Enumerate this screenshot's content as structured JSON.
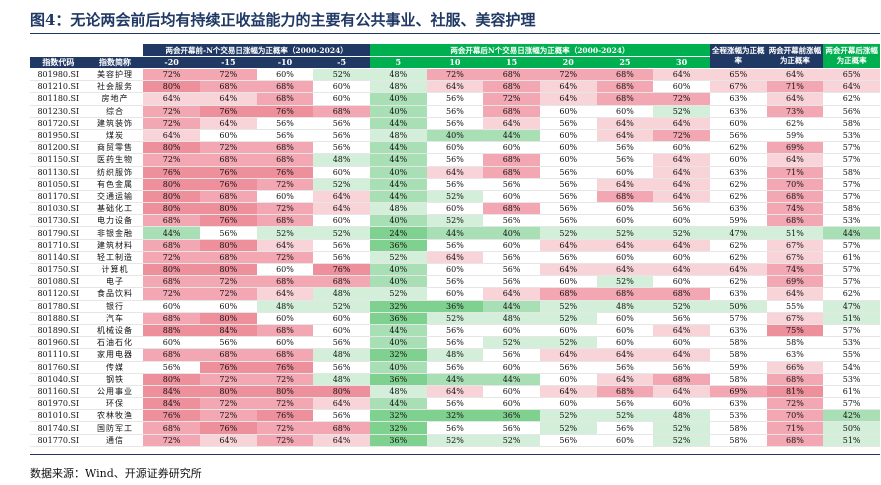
{
  "title": "图4：无论两会前后均有持续正收益能力的主要有公共事业、社服、美容护理",
  "headers": {
    "pre_group": "两会开幕前-N个交易日涨幅为正概率（2000-2024）",
    "post_group": "两会开幕后N个交易日涨幅为正概率（2000-2024）",
    "full": "全程涨幅为正概率",
    "pre_after": "两会开幕前涨幅为正概率",
    "post_after": "两会开幕后涨幅为正概率",
    "code": "指数代码",
    "name": "指数简称",
    "n_pre": [
      "-20",
      "-15",
      "-10",
      "-5"
    ],
    "n_post": [
      "5",
      "10",
      "15",
      "20",
      "25",
      "30"
    ]
  },
  "rows": [
    {
      "code": "801980.SI",
      "name": "美容护理",
      "v": [
        "72%",
        "72%",
        "60%",
        "52%",
        "48%",
        "72%",
        "68%",
        "72%",
        "68%",
        "64%",
        "65%",
        "64%",
        "65%"
      ]
    },
    {
      "code": "801210.SI",
      "name": "社会服务",
      "v": [
        "80%",
        "68%",
        "68%",
        "60%",
        "48%",
        "64%",
        "68%",
        "64%",
        "68%",
        "60%",
        "67%",
        "71%",
        "64%"
      ]
    },
    {
      "code": "801180.SI",
      "name": "房地产",
      "v": [
        "64%",
        "64%",
        "68%",
        "60%",
        "40%",
        "56%",
        "72%",
        "64%",
        "68%",
        "72%",
        "63%",
        "64%",
        "62%"
      ]
    },
    {
      "code": "801230.SI",
      "name": "综合",
      "v": [
        "72%",
        "76%",
        "76%",
        "68%",
        "40%",
        "56%",
        "68%",
        "60%",
        "60%",
        "52%",
        "63%",
        "73%",
        "56%"
      ]
    },
    {
      "code": "801720.SI",
      "name": "建筑装饰",
      "v": [
        "72%",
        "64%",
        "56%",
        "56%",
        "44%",
        "56%",
        "64%",
        "56%",
        "64%",
        "64%",
        "60%",
        "62%",
        "58%"
      ]
    },
    {
      "code": "801950.SI",
      "name": "煤炭",
      "v": [
        "64%",
        "60%",
        "56%",
        "56%",
        "48%",
        "40%",
        "44%",
        "60%",
        "64%",
        "72%",
        "56%",
        "59%",
        "53%"
      ]
    },
    {
      "code": "801200.SI",
      "name": "商贸零售",
      "v": [
        "80%",
        "72%",
        "68%",
        "56%",
        "44%",
        "60%",
        "60%",
        "60%",
        "56%",
        "60%",
        "62%",
        "69%",
        "57%"
      ]
    },
    {
      "code": "801150.SI",
      "name": "医药生物",
      "v": [
        "72%",
        "68%",
        "68%",
        "48%",
        "44%",
        "56%",
        "68%",
        "60%",
        "56%",
        "64%",
        "60%",
        "64%",
        "57%"
      ]
    },
    {
      "code": "801130.SI",
      "name": "纺织服饰",
      "v": [
        "76%",
        "76%",
        "76%",
        "60%",
        "40%",
        "64%",
        "68%",
        "56%",
        "60%",
        "64%",
        "63%",
        "71%",
        "58%"
      ]
    },
    {
      "code": "801050.SI",
      "name": "有色金属",
      "v": [
        "80%",
        "76%",
        "72%",
        "52%",
        "44%",
        "56%",
        "56%",
        "56%",
        "64%",
        "64%",
        "62%",
        "70%",
        "57%"
      ]
    },
    {
      "code": "801170.SI",
      "name": "交通运输",
      "v": [
        "80%",
        "68%",
        "60%",
        "64%",
        "44%",
        "52%",
        "60%",
        "56%",
        "68%",
        "64%",
        "62%",
        "68%",
        "57%"
      ]
    },
    {
      "code": "801030.SI",
      "name": "基础化工",
      "v": [
        "80%",
        "80%",
        "72%",
        "64%",
        "48%",
        "60%",
        "68%",
        "56%",
        "60%",
        "56%",
        "63%",
        "74%",
        "58%"
      ]
    },
    {
      "code": "801730.SI",
      "name": "电力设备",
      "v": [
        "68%",
        "76%",
        "68%",
        "60%",
        "40%",
        "52%",
        "56%",
        "56%",
        "60%",
        "60%",
        "59%",
        "68%",
        "53%"
      ]
    },
    {
      "code": "801790.SI",
      "name": "非银金融",
      "v": [
        "44%",
        "56%",
        "52%",
        "52%",
        "24%",
        "44%",
        "40%",
        "52%",
        "52%",
        "52%",
        "47%",
        "51%",
        "44%"
      ]
    },
    {
      "code": "801710.SI",
      "name": "建筑材料",
      "v": [
        "68%",
        "80%",
        "64%",
        "56%",
        "36%",
        "56%",
        "60%",
        "64%",
        "64%",
        "64%",
        "62%",
        "67%",
        "57%"
      ]
    },
    {
      "code": "801140.SI",
      "name": "轻工制造",
      "v": [
        "72%",
        "68%",
        "72%",
        "56%",
        "52%",
        "64%",
        "56%",
        "56%",
        "60%",
        "60%",
        "62%",
        "67%",
        "61%"
      ]
    },
    {
      "code": "801750.SI",
      "name": "计算机",
      "v": [
        "80%",
        "80%",
        "60%",
        "76%",
        "40%",
        "60%",
        "56%",
        "64%",
        "64%",
        "64%",
        "64%",
        "74%",
        "57%"
      ]
    },
    {
      "code": "801080.SI",
      "name": "电子",
      "v": [
        "68%",
        "72%",
        "68%",
        "68%",
        "40%",
        "56%",
        "56%",
        "60%",
        "52%",
        "60%",
        "62%",
        "69%",
        "57%"
      ]
    },
    {
      "code": "801120.SI",
      "name": "食品饮料",
      "v": [
        "72%",
        "72%",
        "64%",
        "48%",
        "52%",
        "60%",
        "64%",
        "68%",
        "68%",
        "68%",
        "63%",
        "64%",
        "62%"
      ]
    },
    {
      "code": "801780.SI",
      "name": "银行",
      "v": [
        "60%",
        "60%",
        "48%",
        "52%",
        "32%",
        "36%",
        "44%",
        "52%",
        "48%",
        "52%",
        "50%",
        "55%",
        "47%"
      ]
    },
    {
      "code": "801880.SI",
      "name": "汽车",
      "v": [
        "68%",
        "80%",
        "60%",
        "60%",
        "36%",
        "52%",
        "48%",
        "52%",
        "60%",
        "56%",
        "57%",
        "67%",
        "51%"
      ]
    },
    {
      "code": "801890.SI",
      "name": "机械设备",
      "v": [
        "88%",
        "84%",
        "68%",
        "60%",
        "44%",
        "56%",
        "60%",
        "60%",
        "60%",
        "64%",
        "63%",
        "75%",
        "57%"
      ]
    },
    {
      "code": "801960.SI",
      "name": "石油石化",
      "v": [
        "60%",
        "56%",
        "60%",
        "56%",
        "40%",
        "56%",
        "52%",
        "52%",
        "60%",
        "60%",
        "58%",
        "58%",
        "53%"
      ]
    },
    {
      "code": "801110.SI",
      "name": "家用电器",
      "v": [
        "68%",
        "68%",
        "68%",
        "48%",
        "32%",
        "48%",
        "56%",
        "64%",
        "64%",
        "64%",
        "58%",
        "63%",
        "55%"
      ]
    },
    {
      "code": "801760.SI",
      "name": "传媒",
      "v": [
        "56%",
        "76%",
        "76%",
        "56%",
        "40%",
        "56%",
        "60%",
        "56%",
        "56%",
        "56%",
        "59%",
        "66%",
        "54%"
      ]
    },
    {
      "code": "801040.SI",
      "name": "钢铁",
      "v": [
        "80%",
        "72%",
        "72%",
        "48%",
        "36%",
        "44%",
        "44%",
        "60%",
        "64%",
        "68%",
        "58%",
        "68%",
        "53%"
      ]
    },
    {
      "code": "801160.SI",
      "name": "公用事业",
      "v": [
        "84%",
        "80%",
        "80%",
        "80%",
        "48%",
        "64%",
        "60%",
        "64%",
        "68%",
        "64%",
        "69%",
        "81%",
        "61%"
      ]
    },
    {
      "code": "801970.SI",
      "name": "环保",
      "v": [
        "84%",
        "72%",
        "72%",
        "64%",
        "44%",
        "56%",
        "60%",
        "60%",
        "56%",
        "60%",
        "63%",
        "72%",
        "57%"
      ]
    },
    {
      "code": "801010.SI",
      "name": "农林牧渔",
      "v": [
        "76%",
        "72%",
        "76%",
        "56%",
        "32%",
        "32%",
        "36%",
        "52%",
        "52%",
        "48%",
        "53%",
        "70%",
        "42%"
      ]
    },
    {
      "code": "801740.SI",
      "name": "国防军工",
      "v": [
        "68%",
        "76%",
        "72%",
        "68%",
        "32%",
        "56%",
        "56%",
        "52%",
        "56%",
        "52%",
        "58%",
        "71%",
        "50%"
      ]
    },
    {
      "code": "801770.SI",
      "name": "通信",
      "v": [
        "72%",
        "64%",
        "72%",
        "64%",
        "36%",
        "52%",
        "52%",
        "56%",
        "60%",
        "52%",
        "58%",
        "68%",
        "51%"
      ]
    }
  ],
  "source": "数据来源：Wind、开源证券研究所",
  "colors": {
    "header_blue": "#1f3864",
    "header_green": "#00b050",
    "high": "#f2a7b2",
    "low": "#a9dfb4"
  }
}
